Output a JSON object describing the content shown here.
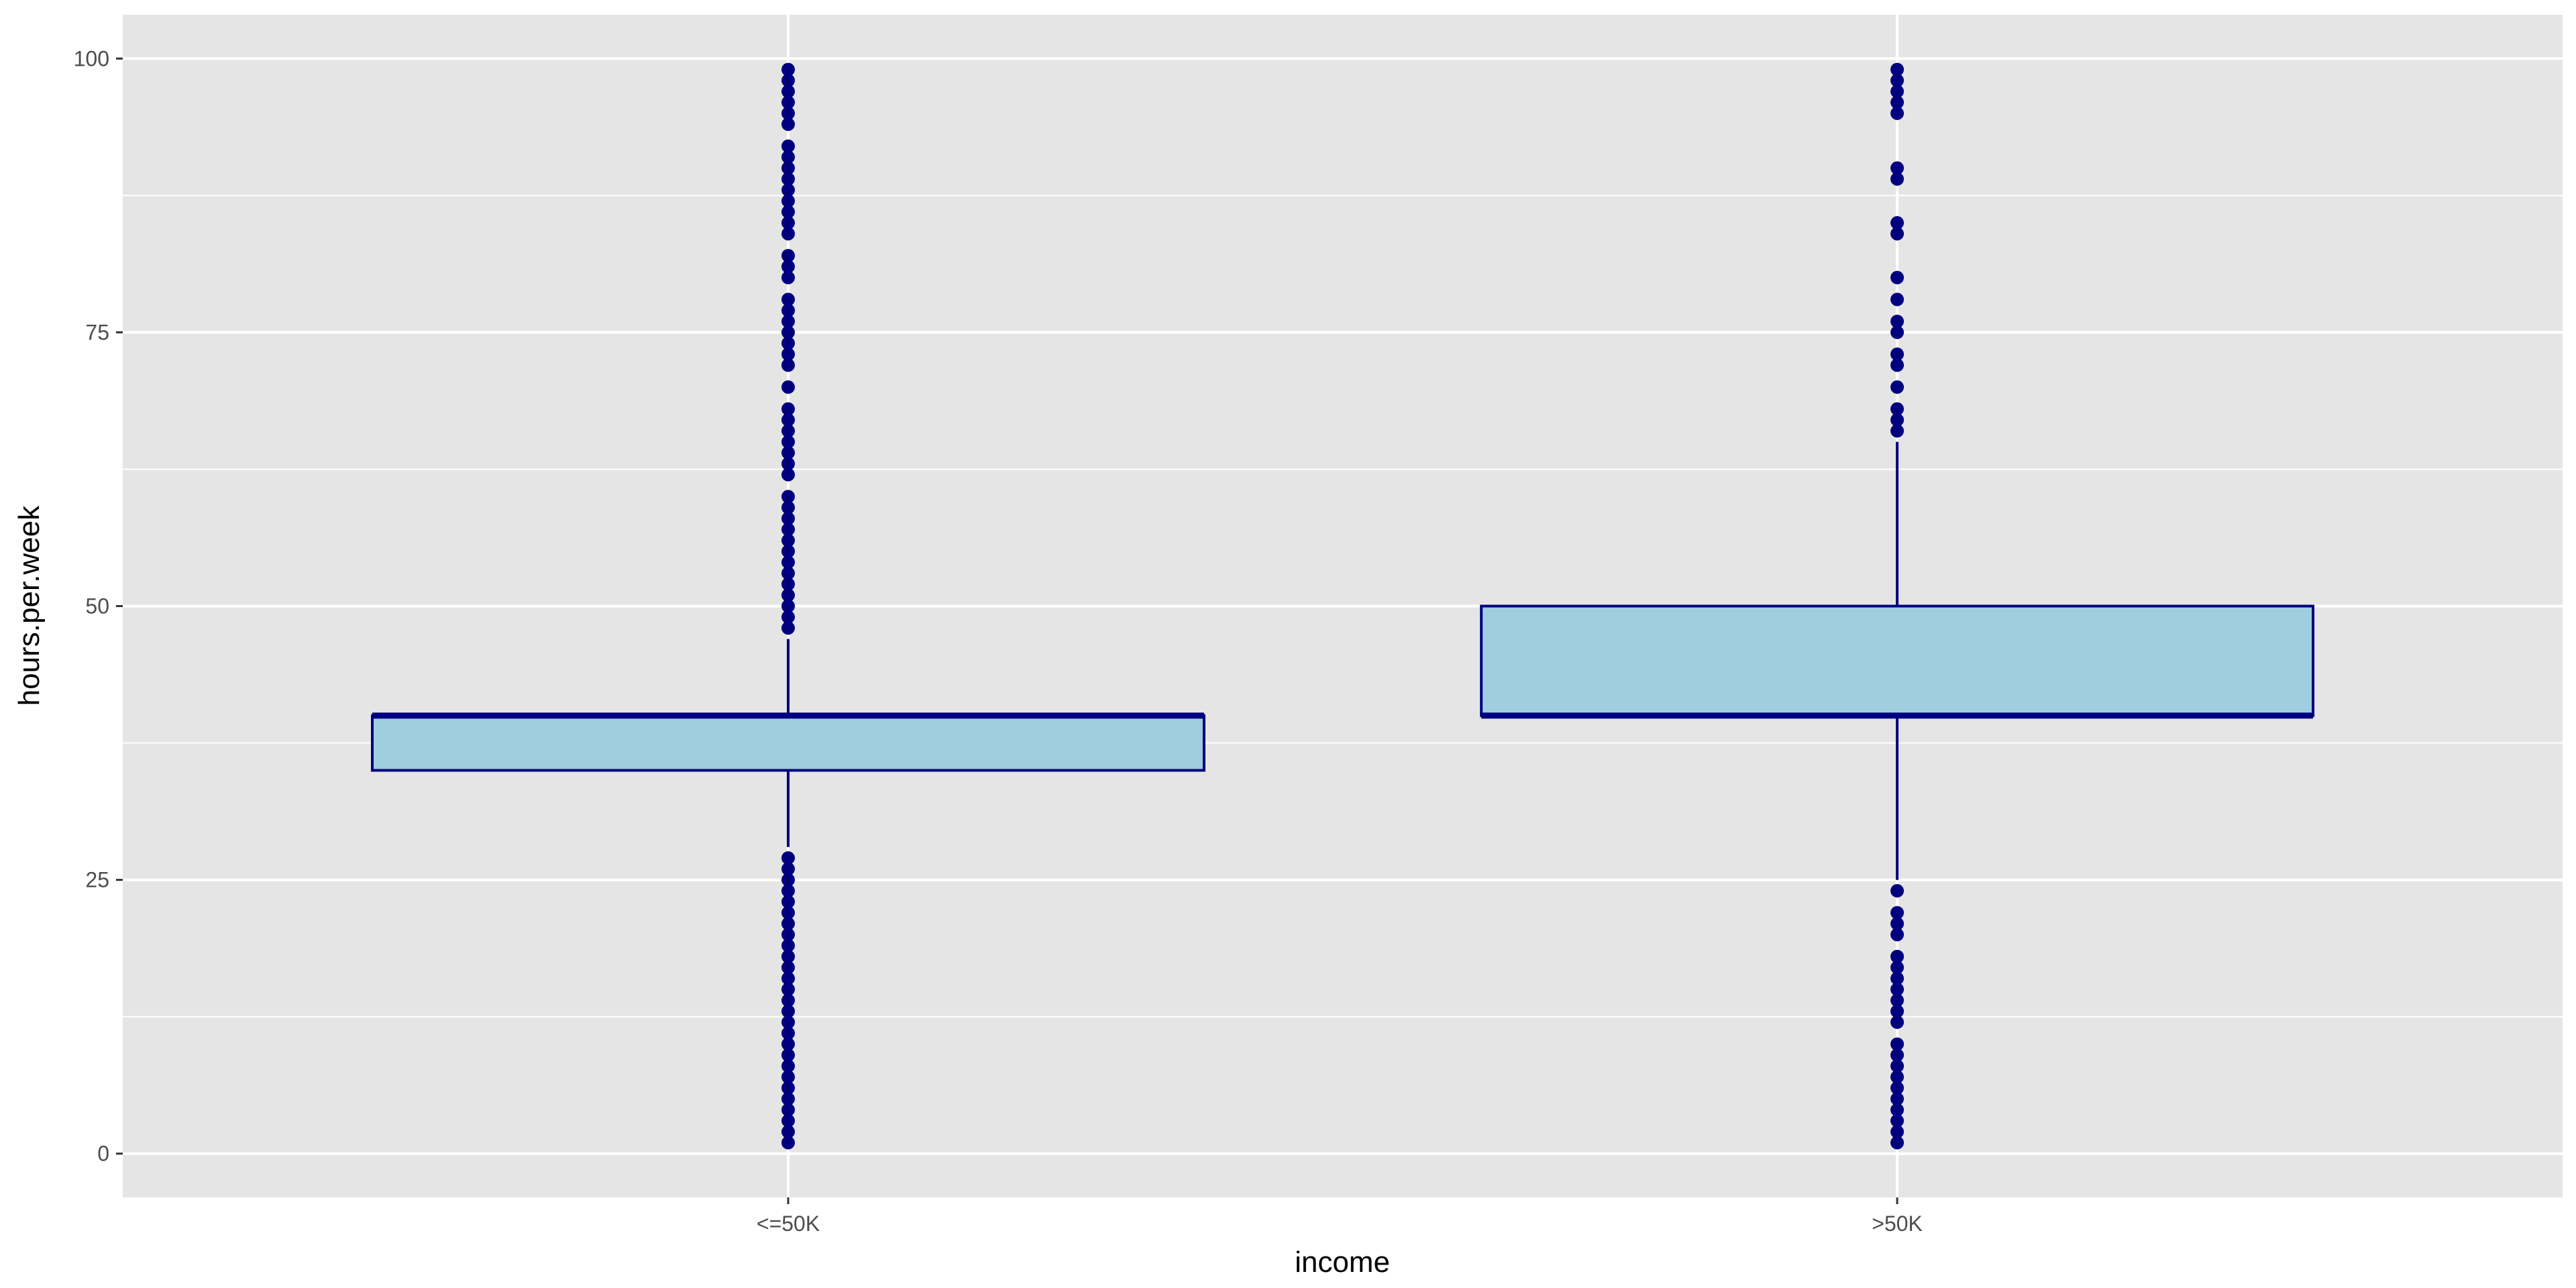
{
  "chart_data": {
    "type": "boxplot",
    "xlabel": "income",
    "ylabel": "hours.per.week",
    "categories": [
      "<=50K",
      ">50K"
    ],
    "ylim": [
      -4,
      104
    ],
    "yticks": [
      0,
      25,
      50,
      75,
      100
    ],
    "grid": true,
    "colors": {
      "panel": "#E5E5E5",
      "grid": "#FFFFFF",
      "box_fill": "#9FCEE0",
      "box_stroke": "#00007F",
      "outlier": "#00007F"
    },
    "boxes": [
      {
        "category": "<=50K",
        "whisker_low": 28,
        "q1": 35,
        "median": 40,
        "q3": 40,
        "whisker_high": 47,
        "outliers": [
          1,
          2,
          3,
          4,
          5,
          6,
          7,
          8,
          9,
          10,
          11,
          12,
          13,
          14,
          15,
          16,
          17,
          18,
          19,
          20,
          21,
          22,
          23,
          24,
          25,
          26,
          27,
          48,
          49,
          50,
          51,
          52,
          53,
          54,
          55,
          56,
          57,
          58,
          59,
          60,
          62,
          63,
          64,
          65,
          66,
          67,
          68,
          70,
          72,
          73,
          74,
          75,
          76,
          77,
          78,
          80,
          81,
          82,
          84,
          85,
          86,
          87,
          88,
          89,
          90,
          91,
          92,
          94,
          95,
          96,
          97,
          98,
          99
        ]
      },
      {
        "category": ">50K",
        "whisker_low": 25,
        "q1": 40,
        "median": 40,
        "q3": 50,
        "whisker_high": 65,
        "outliers": [
          1,
          2,
          3,
          4,
          5,
          6,
          7,
          8,
          9,
          10,
          12,
          13,
          14,
          15,
          16,
          17,
          18,
          20,
          21,
          22,
          24,
          66,
          67,
          68,
          70,
          72,
          73,
          75,
          76,
          78,
          80,
          84,
          85,
          89,
          90,
          95,
          96,
          97,
          98,
          99
        ]
      }
    ]
  }
}
